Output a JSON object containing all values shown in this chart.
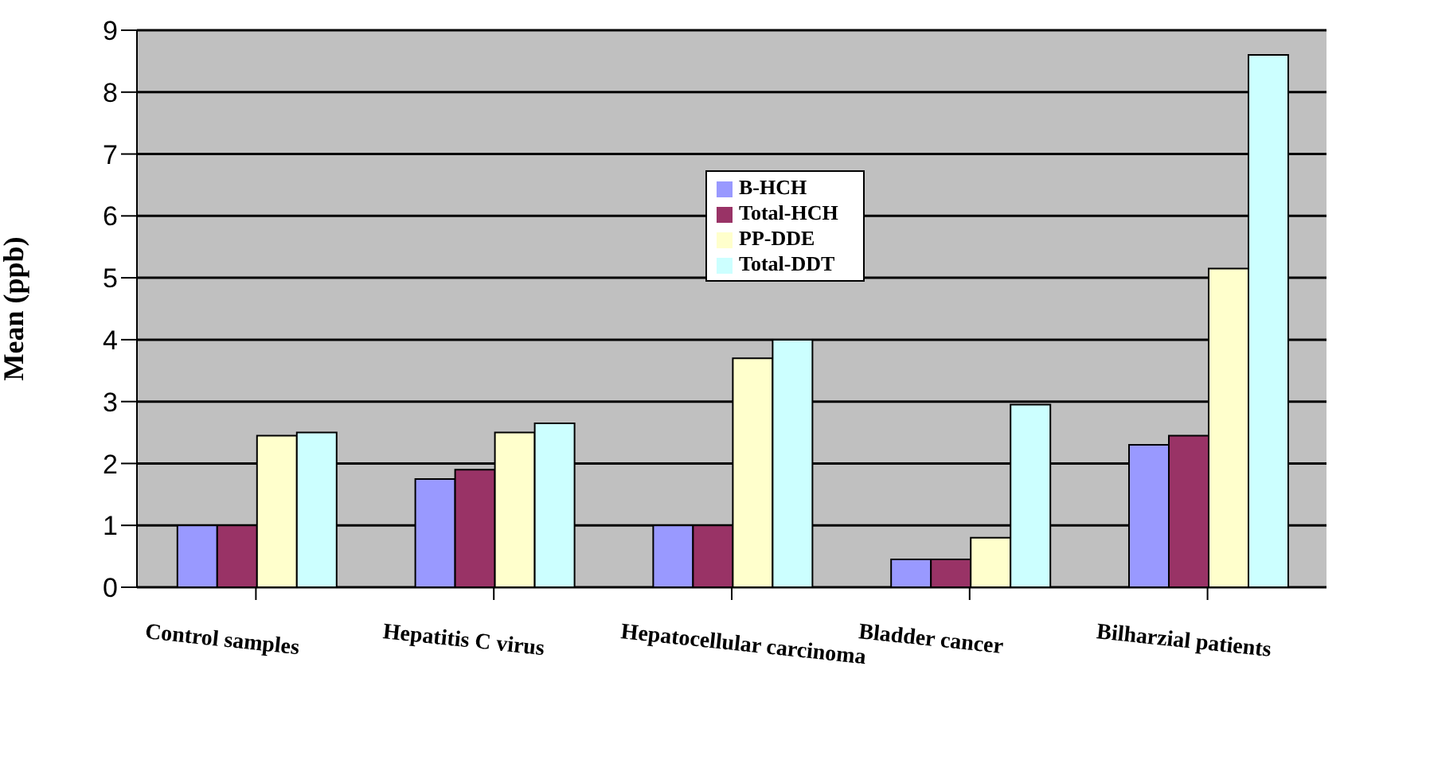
{
  "chart_data": {
    "type": "bar",
    "ylabel": "Mean (ppb)",
    "categories": [
      "Control samples",
      "Hepatitis C virus",
      "Hepatocellular carcinoma",
      "Bladder cancer",
      "Bilharzial patients"
    ],
    "series": [
      {
        "name": "B-HCH",
        "color": "#9999ff",
        "values": [
          1.0,
          1.75,
          1.0,
          0.45,
          2.3
        ]
      },
      {
        "name": "Total-HCH",
        "color": "#993366",
        "values": [
          1.0,
          1.9,
          1.0,
          0.45,
          2.45
        ]
      },
      {
        "name": "PP-DDE",
        "color": "#ffffcc",
        "values": [
          2.45,
          2.5,
          3.7,
          0.8,
          5.15
        ]
      },
      {
        "name": "Total-DDT",
        "color": "#ccffff",
        "values": [
          2.5,
          2.65,
          4.0,
          2.95,
          8.6
        ]
      }
    ],
    "ylim": [
      0,
      9
    ],
    "yticks": [
      0,
      1,
      2,
      3,
      4,
      5,
      6,
      7,
      8,
      9
    ],
    "grid": "y",
    "legend": "top"
  }
}
